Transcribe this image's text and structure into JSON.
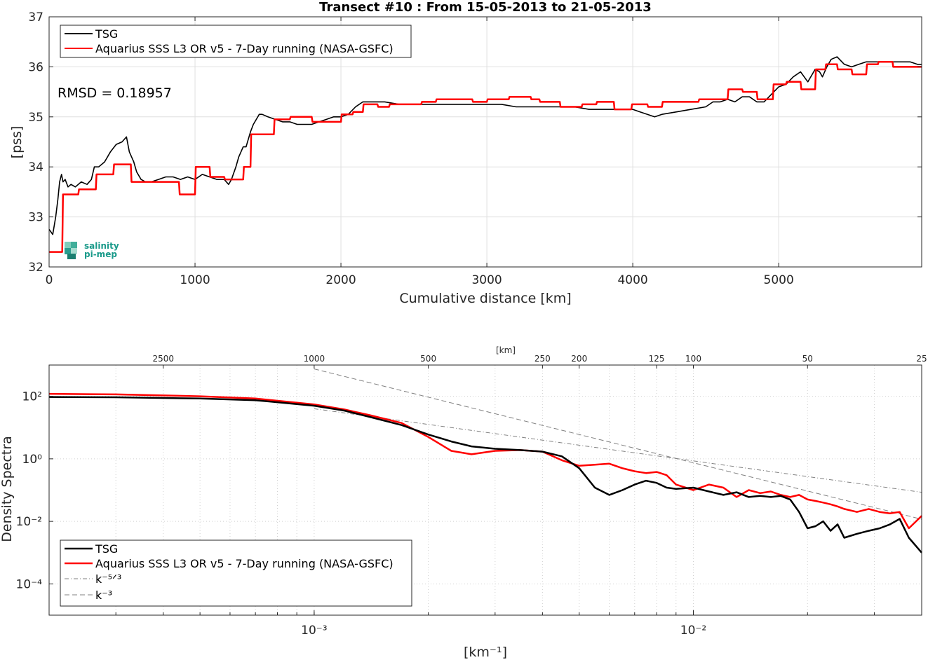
{
  "chart_data": [
    {
      "type": "line",
      "title": "Transect #10 : From 15-05-2013 to 21-05-2013",
      "xlabel": "Cumulative distance [km]",
      "ylabel": "[pss]",
      "xlim": [
        0,
        5980
      ],
      "ylim": [
        32,
        37
      ],
      "xticks": [
        "0",
        "1000",
        "2000",
        "3000",
        "4000",
        "5000"
      ],
      "yticks": [
        "32",
        "33",
        "34",
        "35",
        "36",
        "37"
      ],
      "grid": true,
      "legend_position": "top-left",
      "annotation": "RMSD = 0.18957",
      "logo": "salinity pi-mep",
      "series": [
        {
          "name": "TSG",
          "color": "#000000",
          "x": [
            0,
            25,
            45,
            60,
            72,
            85,
            95,
            110,
            130,
            150,
            180,
            220,
            260,
            290,
            310,
            340,
            380,
            420,
            460,
            500,
            530,
            550,
            580,
            600,
            630,
            660,
            700,
            750,
            800,
            850,
            900,
            950,
            1000,
            1050,
            1100,
            1150,
            1200,
            1230,
            1250,
            1280,
            1300,
            1330,
            1350,
            1380,
            1400,
            1420,
            1440,
            1460,
            1500,
            1550,
            1600,
            1650,
            1700,
            1750,
            1800,
            1850,
            1900,
            1950,
            2000,
            2050,
            2100,
            2150,
            2200,
            2300,
            2400,
            2500,
            2600,
            2700,
            2800,
            2900,
            3000,
            3100,
            3200,
            3300,
            3400,
            3500,
            3600,
            3700,
            3800,
            3900,
            4000,
            4050,
            4100,
            4150,
            4200,
            4300,
            4400,
            4500,
            4550,
            4600,
            4650,
            4700,
            4750,
            4800,
            4850,
            4900,
            4950,
            5000,
            5050,
            5100,
            5150,
            5200,
            5250,
            5280,
            5300,
            5330,
            5360,
            5400,
            5450,
            5500,
            5550,
            5600,
            5650,
            5700,
            5750,
            5800,
            5850,
            5900,
            5950,
            5980
          ],
          "y": [
            32.75,
            32.65,
            33.0,
            33.35,
            33.7,
            33.85,
            33.7,
            33.75,
            33.6,
            33.65,
            33.6,
            33.7,
            33.65,
            33.75,
            34.0,
            34.0,
            34.1,
            34.3,
            34.45,
            34.5,
            34.6,
            34.3,
            34.1,
            33.9,
            33.75,
            33.7,
            33.7,
            33.75,
            33.8,
            33.8,
            33.75,
            33.8,
            33.75,
            33.85,
            33.8,
            33.75,
            33.75,
            33.65,
            33.75,
            34.0,
            34.2,
            34.4,
            34.4,
            34.7,
            34.85,
            34.95,
            35.05,
            35.05,
            35.0,
            34.95,
            34.9,
            34.9,
            34.85,
            34.85,
            34.85,
            34.9,
            34.95,
            35.0,
            35.0,
            35.05,
            35.2,
            35.3,
            35.3,
            35.3,
            35.25,
            35.25,
            35.25,
            35.25,
            35.25,
            35.25,
            35.25,
            35.25,
            35.2,
            35.2,
            35.2,
            35.2,
            35.2,
            35.15,
            35.15,
            35.15,
            35.15,
            35.1,
            35.05,
            35.0,
            35.05,
            35.1,
            35.15,
            35.2,
            35.3,
            35.3,
            35.35,
            35.3,
            35.4,
            35.4,
            35.3,
            35.3,
            35.45,
            35.6,
            35.65,
            35.8,
            35.9,
            35.7,
            35.95,
            35.9,
            35.8,
            36.0,
            36.15,
            36.2,
            36.05,
            36.0,
            36.05,
            36.1,
            36.1,
            36.1,
            36.1,
            36.1,
            36.1,
            36.1,
            36.05,
            36.05
          ]
        },
        {
          "name": "Aquarius SSS L3 OR v5 - 7-Day running (NASA-GSFC)",
          "color": "#ff0000",
          "x": [
            0,
            90,
            95,
            200,
            205,
            320,
            325,
            440,
            445,
            560,
            565,
            740,
            745,
            890,
            895,
            1000,
            1005,
            1100,
            1105,
            1200,
            1205,
            1250,
            1255,
            1330,
            1335,
            1380,
            1385,
            1540,
            1545,
            1650,
            1655,
            1800,
            1805,
            1910,
            1915,
            2000,
            2005,
            2080,
            2085,
            2150,
            2155,
            2250,
            2255,
            2330,
            2335,
            2550,
            2555,
            2650,
            2655,
            2900,
            2905,
            3000,
            3005,
            3150,
            3155,
            3300,
            3305,
            3360,
            3365,
            3500,
            3505,
            3650,
            3655,
            3750,
            3755,
            3870,
            3875,
            3990,
            3995,
            4100,
            4105,
            4200,
            4205,
            4300,
            4305,
            4450,
            4455,
            4550,
            4555,
            4650,
            4655,
            4750,
            4755,
            4850,
            4855,
            4960,
            4965,
            5050,
            5055,
            5150,
            5155,
            5250,
            5255,
            5320,
            5325,
            5400,
            5405,
            5500,
            5505,
            5600,
            5605,
            5680,
            5685,
            5780,
            5785,
            5980
          ],
          "y": [
            32.3,
            32.3,
            33.45,
            33.45,
            33.55,
            33.55,
            33.85,
            33.85,
            34.05,
            34.05,
            33.7,
            33.7,
            33.7,
            33.7,
            33.45,
            33.45,
            34.0,
            34.0,
            33.8,
            33.8,
            33.75,
            33.75,
            33.75,
            33.75,
            34.0,
            34.0,
            34.65,
            34.65,
            34.95,
            34.95,
            35.0,
            35.0,
            34.9,
            34.9,
            34.9,
            34.9,
            35.05,
            35.05,
            35.1,
            35.1,
            35.25,
            35.25,
            35.2,
            35.2,
            35.25,
            35.25,
            35.3,
            35.3,
            35.35,
            35.35,
            35.3,
            35.3,
            35.35,
            35.35,
            35.4,
            35.4,
            35.35,
            35.35,
            35.3,
            35.3,
            35.2,
            35.2,
            35.25,
            35.25,
            35.3,
            35.3,
            35.15,
            35.15,
            35.25,
            35.25,
            35.2,
            35.2,
            35.3,
            35.3,
            35.3,
            35.3,
            35.35,
            35.35,
            35.35,
            35.35,
            35.55,
            35.55,
            35.5,
            35.5,
            35.35,
            35.35,
            35.65,
            35.65,
            35.7,
            35.7,
            35.55,
            35.55,
            35.95,
            35.95,
            36.05,
            36.05,
            35.95,
            35.95,
            35.85,
            35.85,
            36.05,
            36.05,
            36.1,
            36.1,
            36.0,
            36.0
          ]
        }
      ]
    },
    {
      "type": "line",
      "title": "",
      "xlabel": "[km⁻¹]",
      "ylabel": "Density Spectra",
      "x_scale": "log",
      "y_scale": "log",
      "xlim": [
        0.0002,
        0.04
      ],
      "ylim": [
        1e-05,
        1000
      ],
      "xticks": [
        "10⁻³",
        "10⁻²"
      ],
      "yticks": [
        "10⁻⁴",
        "10⁻²",
        "10⁰",
        "10²"
      ],
      "top_axis_label": "[km]",
      "top_ticks": [
        "2500",
        "1000",
        "500",
        "250",
        "200",
        "125",
        "100",
        "50",
        "25"
      ],
      "grid": true,
      "legend_position": "bottom-left",
      "series": [
        {
          "name": "TSG",
          "color": "#000000",
          "x": [
            0.0002,
            0.0003,
            0.0005,
            0.0007,
            0.001,
            0.0012,
            0.0014,
            0.0017,
            0.002,
            0.0023,
            0.0026,
            0.003,
            0.0035,
            0.004,
            0.0045,
            0.005,
            0.0055,
            0.006,
            0.0065,
            0.007,
            0.0075,
            0.008,
            0.0085,
            0.009,
            0.01,
            0.011,
            0.012,
            0.013,
            0.014,
            0.015,
            0.016,
            0.017,
            0.018,
            0.019,
            0.02,
            0.021,
            0.022,
            0.023,
            0.024,
            0.025,
            0.027,
            0.029,
            0.031,
            0.033,
            0.035,
            0.037,
            0.04
          ],
          "y": [
            95,
            93,
            85,
            75,
            50,
            35,
            22,
            12,
            6,
            3.6,
            2.5,
            2.1,
            1.9,
            1.7,
            1.2,
            0.5,
            0.12,
            0.07,
            0.1,
            0.15,
            0.2,
            0.17,
            0.12,
            0.11,
            0.12,
            0.09,
            0.07,
            0.085,
            0.06,
            0.065,
            0.06,
            0.065,
            0.05,
            0.02,
            0.006,
            0.007,
            0.01,
            0.005,
            0.008,
            0.003,
            0.004,
            0.005,
            0.006,
            0.008,
            0.012,
            0.003,
            0.001
          ]
        },
        {
          "name": "Aquarius SSS L3 OR v5 - 7-Day running (NASA-GSFC)",
          "color": "#ff0000",
          "x": [
            0.0002,
            0.0003,
            0.0005,
            0.0007,
            0.001,
            0.0012,
            0.0014,
            0.0017,
            0.002,
            0.0023,
            0.0026,
            0.003,
            0.0035,
            0.004,
            0.0045,
            0.005,
            0.0055,
            0.006,
            0.0065,
            0.007,
            0.0075,
            0.008,
            0.0085,
            0.009,
            0.01,
            0.011,
            0.012,
            0.013,
            0.014,
            0.015,
            0.016,
            0.017,
            0.018,
            0.019,
            0.02,
            0.021,
            0.022,
            0.023,
            0.024,
            0.025,
            0.027,
            0.029,
            0.031,
            0.033,
            0.035,
            0.037,
            0.04
          ],
          "y": [
            120,
            115,
            100,
            85,
            55,
            38,
            25,
            14,
            5,
            1.8,
            1.4,
            1.8,
            1.9,
            1.7,
            0.9,
            0.6,
            0.65,
            0.7,
            0.5,
            0.4,
            0.35,
            0.38,
            0.3,
            0.15,
            0.1,
            0.15,
            0.12,
            0.06,
            0.1,
            0.08,
            0.09,
            0.07,
            0.06,
            0.07,
            0.05,
            0.045,
            0.04,
            0.035,
            0.03,
            0.025,
            0.02,
            0.025,
            0.02,
            0.018,
            0.02,
            0.006,
            0.015
          ]
        },
        {
          "name": "k⁻⁵ᐟ³",
          "color": "#808080",
          "dash": "dashdot",
          "x": [
            0.001,
            0.04
          ],
          "y": [
            40,
            0.085
          ]
        },
        {
          "name": "k⁻³",
          "color": "#808080",
          "dash": "dashed",
          "x": [
            0.001,
            0.04
          ],
          "y": [
            750,
            0.0117
          ]
        }
      ]
    }
  ]
}
